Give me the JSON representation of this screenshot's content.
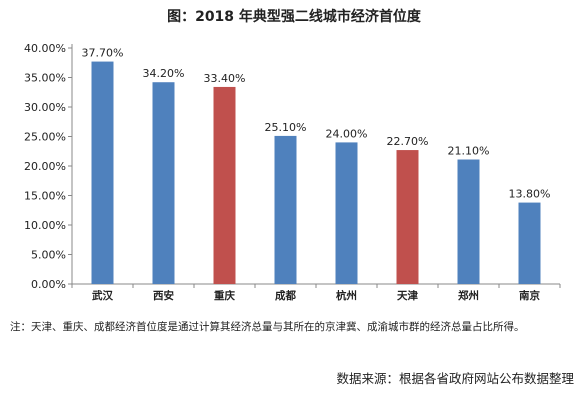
{
  "chart_data": {
    "type": "bar",
    "title": "图：2018 年典型强二线城市经济首位度",
    "categories": [
      "武汉",
      "西安",
      "重庆",
      "成都",
      "杭州",
      "天津",
      "郑州",
      "南京"
    ],
    "values": [
      37.7,
      34.2,
      33.4,
      25.1,
      24.0,
      22.7,
      21.1,
      13.8
    ],
    "value_labels": [
      "37.70%",
      "34.20%",
      "33.40%",
      "25.10%",
      "24.00%",
      "22.70%",
      "21.10%",
      "13.80%"
    ],
    "highlighted": [
      "重庆",
      "天津"
    ],
    "ylim": [
      0,
      40
    ],
    "yticks": [
      0,
      5,
      10,
      15,
      20,
      25,
      30,
      35,
      40
    ],
    "ytick_labels": [
      "0.00%",
      "5.00%",
      "10.00%",
      "15.00%",
      "20.00%",
      "25.00%",
      "30.00%",
      "35.00%",
      "40.00%"
    ],
    "colors": {
      "default": "#4f81bd",
      "highlight": "#c0504d"
    },
    "grid": false,
    "legend": "none"
  },
  "footnote": "注：天津、重庆、成都经济首位度是通过计算其经济总量与其所在的京津冀、成渝城市群的经济总量占比所得。",
  "source": "数据来源：根据各省政府网站公布数据整理"
}
